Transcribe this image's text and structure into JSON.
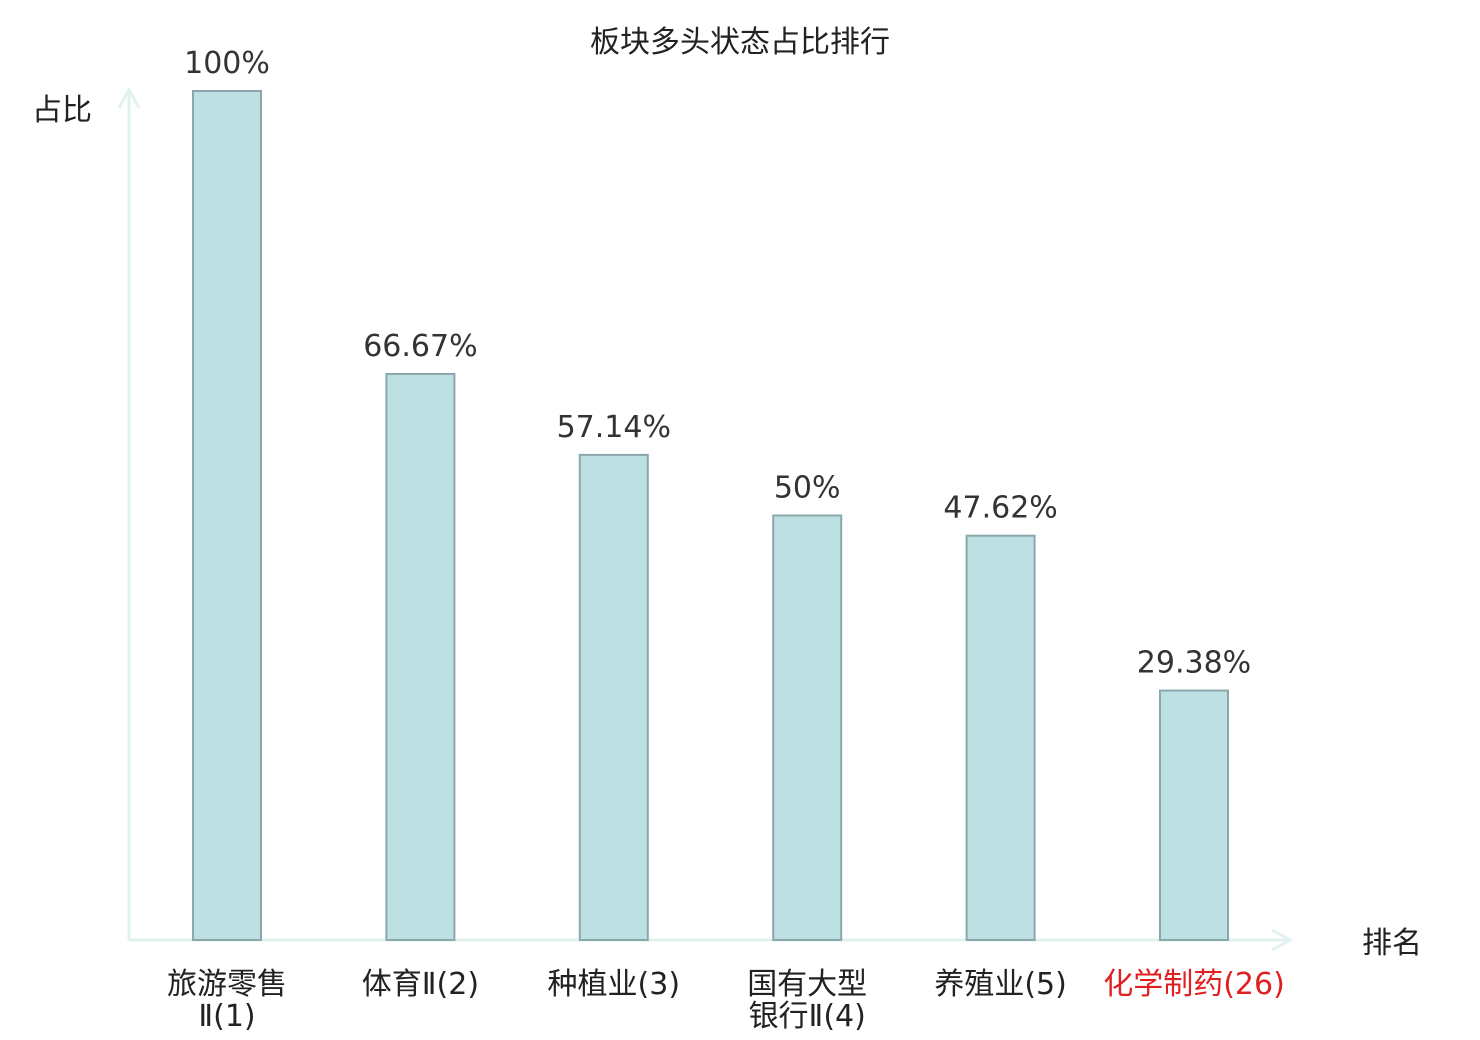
{
  "chart_data": {
    "type": "bar",
    "title": "板块多头状态占比排行",
    "ylabel": "占比",
    "xlabel": "排名",
    "ylim": [
      0,
      100
    ],
    "grid": false,
    "categories": [
      [
        "旅游零售",
        "Ⅱ(1)"
      ],
      [
        "体育Ⅱ(2)"
      ],
      [
        "种植业(3)"
      ],
      [
        "国有大型",
        "银行Ⅱ(4)"
      ],
      [
        "养殖业(5)"
      ],
      [
        "化学制药(26)"
      ]
    ],
    "values": [
      100,
      66.67,
      57.14,
      50,
      47.62,
      29.38
    ],
    "value_labels": [
      "100%",
      "66.67%",
      "57.14%",
      "50%",
      "47.62%",
      "29.38%"
    ],
    "highlight_index": 5,
    "colors": {
      "bar_fill": "#bde0e3",
      "bar_stroke": "#8aa8ab",
      "axis": "#e0f2f0",
      "text": "#222222",
      "value_text": "#333333",
      "highlight": "#e02020"
    }
  }
}
